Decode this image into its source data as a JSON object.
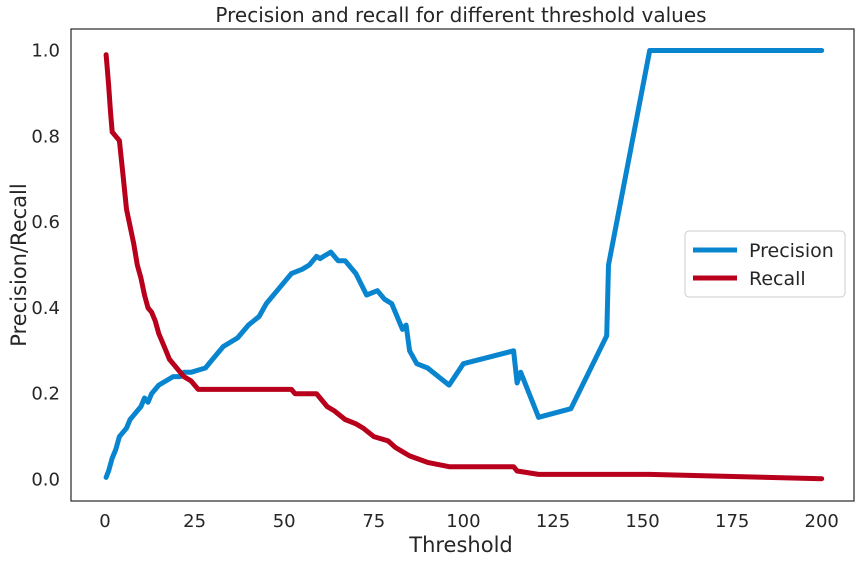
{
  "chart_data": {
    "type": "line",
    "title": "Precision and recall for different threshold values",
    "xlabel": "Threshold",
    "ylabel": "Precision/Recall",
    "xlim": [
      -9.5,
      209
    ],
    "ylim": [
      -0.05,
      1.05
    ],
    "xticks": [
      0,
      25,
      50,
      75,
      100,
      125,
      150,
      175,
      200
    ],
    "yticks": [
      0.0,
      0.2,
      0.4,
      0.6,
      0.8,
      1.0
    ],
    "ytick_labels": [
      "0.0",
      "0.2",
      "0.4",
      "0.6",
      "0.8",
      "1.0"
    ],
    "grid": false,
    "legend_position": "center-right",
    "series": [
      {
        "name": "Precision",
        "color": "#0985CF",
        "x": [
          0.3,
          1,
          2,
          3,
          4,
          5,
          6,
          7,
          8,
          9,
          10,
          11,
          12,
          13,
          14,
          15,
          17,
          19,
          21,
          22,
          24,
          26,
          28,
          30,
          33,
          37,
          40,
          43,
          45,
          48,
          50,
          52,
          55,
          57,
          58,
          59,
          60,
          61,
          63,
          65,
          67,
          70,
          73,
          76,
          78,
          80,
          82,
          83,
          84,
          85,
          87,
          90,
          93,
          96,
          100,
          114,
          115,
          116,
          121,
          130,
          135,
          140,
          140.5,
          152,
          200
        ],
        "y": [
          0.005,
          0.02,
          0.05,
          0.07,
          0.1,
          0.11,
          0.12,
          0.14,
          0.15,
          0.16,
          0.17,
          0.19,
          0.18,
          0.2,
          0.21,
          0.22,
          0.23,
          0.24,
          0.24,
          0.25,
          0.25,
          0.255,
          0.26,
          0.28,
          0.31,
          0.33,
          0.36,
          0.38,
          0.41,
          0.44,
          0.46,
          0.48,
          0.49,
          0.5,
          0.51,
          0.52,
          0.515,
          0.52,
          0.53,
          0.51,
          0.51,
          0.48,
          0.43,
          0.44,
          0.42,
          0.41,
          0.37,
          0.35,
          0.36,
          0.3,
          0.27,
          0.26,
          0.24,
          0.22,
          0.27,
          0.3,
          0.225,
          0.25,
          0.145,
          0.165,
          0.25,
          0.335,
          0.5,
          1.0,
          1.0
        ]
      },
      {
        "name": "Recall",
        "color": "#B8001C",
        "x": [
          0.3,
          0.6,
          1,
          1.5,
          2,
          3,
          4,
          4.5,
          5,
          6,
          7,
          8,
          9,
          10,
          11,
          12,
          13,
          14,
          15,
          16,
          17,
          18,
          19,
          20,
          21,
          22,
          24,
          26,
          30,
          40,
          52,
          53,
          59,
          60,
          62,
          64,
          67,
          70,
          72,
          75,
          79,
          81,
          83,
          85,
          90,
          96,
          114,
          115,
          121,
          152,
          200
        ],
        "y": [
          0.99,
          0.96,
          0.92,
          0.86,
          0.81,
          0.8,
          0.79,
          0.75,
          0.71,
          0.63,
          0.59,
          0.55,
          0.5,
          0.47,
          0.43,
          0.4,
          0.39,
          0.37,
          0.34,
          0.32,
          0.3,
          0.28,
          0.27,
          0.26,
          0.25,
          0.24,
          0.23,
          0.21,
          0.21,
          0.21,
          0.21,
          0.2,
          0.2,
          0.19,
          0.17,
          0.16,
          0.14,
          0.13,
          0.12,
          0.1,
          0.09,
          0.075,
          0.065,
          0.055,
          0.04,
          0.03,
          0.03,
          0.02,
          0.012,
          0.012,
          0.002
        ]
      }
    ]
  }
}
